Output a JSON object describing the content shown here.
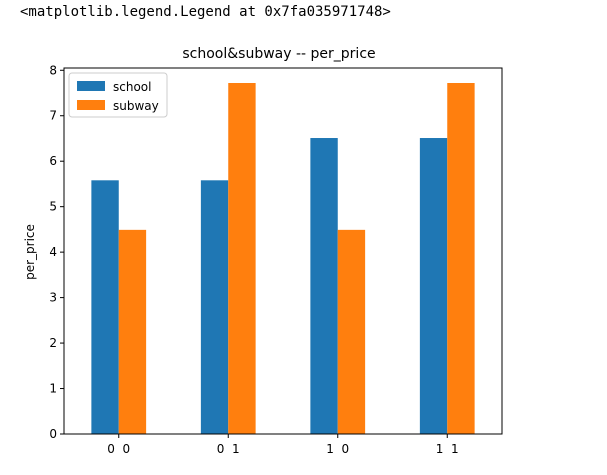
{
  "cell_output": {
    "text": "<matplotlib.legend.Legend at 0x7fa035971748>"
  },
  "chart_data": {
    "type": "bar",
    "title": "school&subway -- per_price",
    "xlabel": "",
    "ylabel": "per_price",
    "categories": [
      "0  0",
      "0  1",
      "1  0",
      "1  1"
    ],
    "series": [
      {
        "name": "school",
        "color": "#1f77b4",
        "values": [
          5.58,
          5.58,
          6.51,
          6.51
        ]
      },
      {
        "name": "subway",
        "color": "#ff7f0e",
        "values": [
          4.49,
          7.72,
          4.49,
          7.72
        ]
      }
    ],
    "ylim": [
      0,
      8.05
    ],
    "yticks": [
      0,
      1,
      2,
      3,
      4,
      5,
      6,
      7,
      8
    ],
    "legend_position": "top-left",
    "grid": false
  }
}
